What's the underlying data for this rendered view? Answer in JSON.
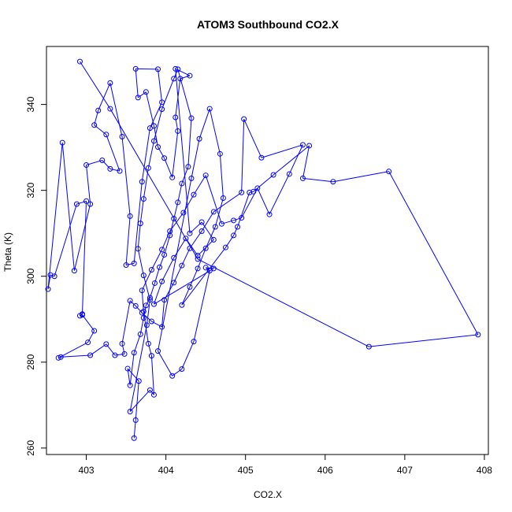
{
  "chart_data": {
    "type": "line",
    "title": "ATOM3 Southbound CO2.X",
    "xlabel": "CO2.X",
    "ylabel": "Theta (K)",
    "xlim": [
      402.5,
      408.05
    ],
    "ylim": [
      258.5,
      353.5
    ],
    "xticks": [
      403,
      404,
      405,
      406,
      407,
      408
    ],
    "yticks": [
      260,
      280,
      300,
      320,
      340
    ],
    "grid": false,
    "legend": "none",
    "series_color": "#0000ff",
    "points": [
      [
        403.6,
        262.3
      ],
      [
        403.62,
        266.5
      ],
      [
        403.66,
        275.6
      ],
      [
        403.52,
        278.5
      ],
      [
        403.55,
        274.6
      ],
      [
        403.6,
        282.2
      ],
      [
        403.68,
        286.5
      ],
      [
        403.72,
        290.3
      ],
      [
        403.75,
        293.2
      ],
      [
        403.8,
        295.0
      ],
      [
        403.86,
        298.4
      ],
      [
        403.92,
        302.1
      ],
      [
        403.98,
        305.0
      ],
      [
        404.05,
        309.5
      ],
      [
        404.1,
        313.4
      ],
      [
        404.15,
        317.2
      ],
      [
        404.2,
        321.6
      ],
      [
        404.28,
        325.5
      ],
      [
        404.32,
        336.8
      ],
      [
        404.15,
        348.2
      ],
      [
        404.1,
        346.0
      ],
      [
        403.95,
        338.9
      ],
      [
        403.85,
        331.5
      ],
      [
        403.78,
        325.2
      ],
      [
        403.72,
        318.0
      ],
      [
        403.68,
        312.3
      ],
      [
        403.65,
        306.4
      ],
      [
        403.72,
        300.2
      ],
      [
        403.8,
        294.5
      ],
      [
        403.76,
        288.6
      ],
      [
        403.55,
        268.5
      ],
      [
        403.8,
        273.5
      ],
      [
        403.85,
        272.4
      ],
      [
        403.82,
        281.5
      ],
      [
        403.78,
        284.3
      ],
      [
        403.72,
        291.8
      ],
      [
        403.7,
        296.7
      ],
      [
        403.82,
        301.5
      ],
      [
        403.95,
        306.2
      ],
      [
        404.05,
        310.5
      ],
      [
        404.22,
        314.8
      ],
      [
        404.35,
        319.0
      ],
      [
        404.5,
        323.5
      ],
      [
        404.7,
        312.2
      ],
      [
        404.85,
        313.0
      ],
      [
        404.95,
        313.6
      ],
      [
        405.15,
        320.5
      ],
      [
        405.3,
        314.4
      ],
      [
        405.55,
        323.8
      ],
      [
        405.72,
        330.6
      ],
      [
        405.2,
        327.6
      ],
      [
        404.98,
        336.6
      ],
      [
        404.95,
        319.5
      ],
      [
        404.6,
        315.0
      ],
      [
        404.45,
        310.5
      ],
      [
        404.3,
        306.5
      ],
      [
        404.2,
        302.5
      ],
      [
        404.1,
        298.5
      ],
      [
        403.98,
        294.5
      ],
      [
        403.95,
        288.2
      ],
      [
        403.82,
        289.5
      ],
      [
        403.7,
        291.5
      ],
      [
        403.62,
        293.1
      ],
      [
        403.55,
        294.3
      ],
      [
        403.45,
        284.3
      ],
      [
        403.48,
        281.9
      ],
      [
        403.36,
        281.6
      ],
      [
        403.25,
        284.2
      ],
      [
        403.05,
        281.6
      ],
      [
        402.68,
        281.2
      ],
      [
        402.65,
        281.0
      ],
      [
        403.02,
        284.6
      ],
      [
        403.1,
        287.3
      ],
      [
        402.95,
        291.0
      ],
      [
        402.92,
        290.8
      ],
      [
        402.95,
        291.2
      ],
      [
        403.0,
        317.5
      ],
      [
        402.88,
        316.8
      ],
      [
        402.6,
        300.0
      ],
      [
        402.55,
        300.3
      ],
      [
        402.52,
        297.0
      ],
      [
        402.7,
        331.1
      ],
      [
        402.85,
        301.3
      ],
      [
        403.05,
        316.8
      ],
      [
        403.0,
        325.9
      ],
      [
        403.2,
        327.0
      ],
      [
        403.3,
        325.0
      ],
      [
        403.42,
        324.5
      ],
      [
        403.25,
        333.0
      ],
      [
        403.1,
        335.2
      ],
      [
        403.15,
        338.6
      ],
      [
        403.3,
        345.0
      ],
      [
        403.45,
        332.5
      ],
      [
        403.55,
        314.0
      ],
      [
        403.5,
        302.6
      ],
      [
        403.6,
        303.0
      ],
      [
        403.7,
        322.0
      ],
      [
        403.8,
        334.5
      ],
      [
        403.95,
        340.5
      ],
      [
        403.9,
        348.2
      ],
      [
        403.62,
        348.3
      ],
      [
        403.65,
        341.6
      ],
      [
        403.75,
        342.9
      ],
      [
        403.85,
        335.0
      ],
      [
        403.9,
        330.1
      ],
      [
        403.98,
        327.5
      ],
      [
        404.08,
        323.0
      ],
      [
        404.15,
        333.8
      ],
      [
        404.12,
        337.0
      ],
      [
        404.18,
        346.0
      ],
      [
        404.3,
        346.7
      ],
      [
        404.12,
        348.3
      ],
      [
        404.3,
        310.0
      ],
      [
        404.45,
        312.6
      ],
      [
        404.6,
        308.5
      ],
      [
        404.4,
        304.8
      ],
      [
        404.25,
        308.8
      ],
      [
        404.1,
        304.3
      ],
      [
        403.95,
        298.8
      ],
      [
        403.85,
        293.5
      ],
      [
        404.6,
        301.8
      ],
      [
        404.5,
        302.0
      ],
      [
        404.55,
        301.3
      ],
      [
        404.35,
        284.8
      ],
      [
        404.2,
        278.4
      ],
      [
        404.08,
        276.8
      ],
      [
        403.9,
        282.6
      ],
      [
        404.32,
        322.8
      ],
      [
        404.42,
        332.0
      ],
      [
        404.55,
        339.0
      ],
      [
        404.68,
        328.5
      ],
      [
        404.72,
        318.2
      ],
      [
        404.62,
        311.5
      ],
      [
        404.5,
        306.5
      ],
      [
        404.4,
        301.8
      ],
      [
        404.3,
        297.5
      ],
      [
        404.2,
        293.3
      ],
      [
        404.75,
        306.7
      ],
      [
        404.85,
        309.5
      ],
      [
        404.9,
        311.5
      ],
      [
        405.05,
        319.5
      ],
      [
        405.1,
        319.7
      ],
      [
        405.35,
        323.6
      ],
      [
        405.8,
        330.4
      ],
      [
        405.72,
        322.8
      ],
      [
        406.1,
        322.0
      ],
      [
        406.8,
        324.4
      ],
      [
        407.92,
        286.4
      ],
      [
        406.55,
        283.6
      ],
      [
        404.4,
        304.0
      ],
      [
        403.3,
        339.0
      ],
      [
        402.92,
        350.0
      ]
    ]
  }
}
